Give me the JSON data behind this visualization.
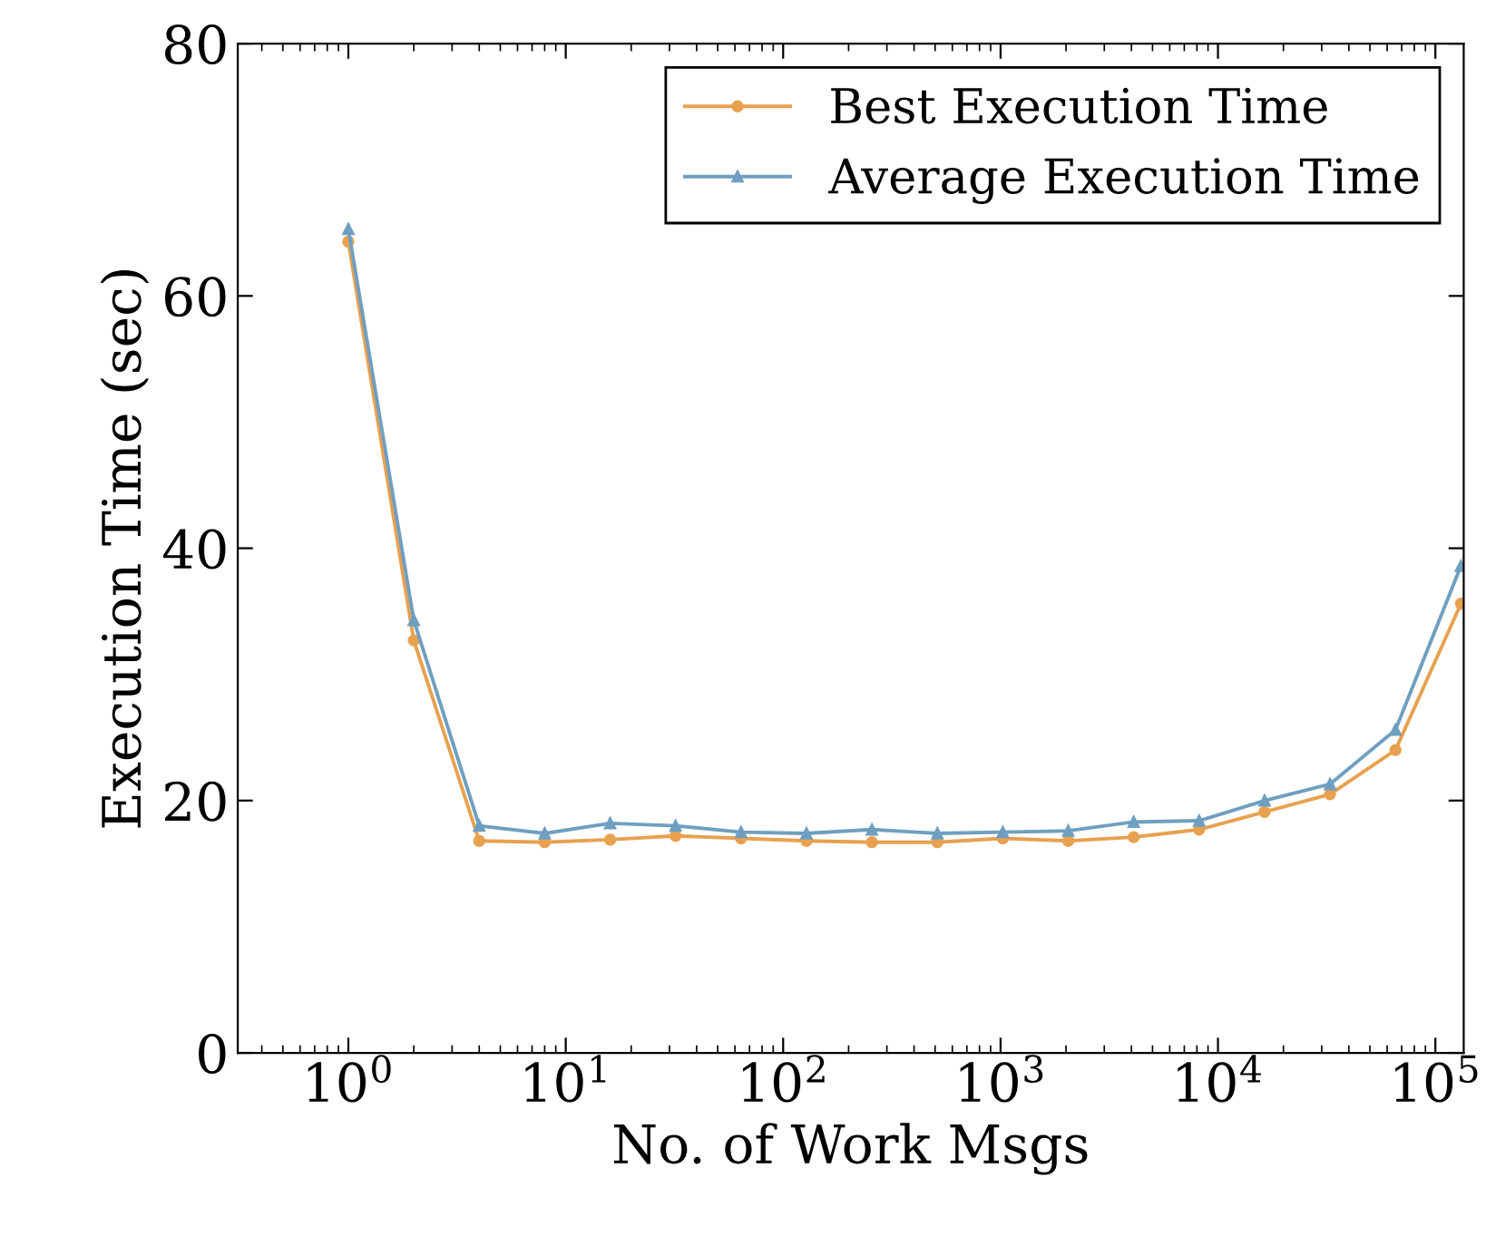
{
  "chart_data": {
    "type": "line",
    "xlabel": "No. of Work Msgs",
    "ylabel": "Execution Time (sec)",
    "log": "x",
    "xlim": [
      0.31,
      135000
    ],
    "ylim": [
      0,
      80
    ],
    "xticks": [
      {
        "value": 1,
        "label": "10$^{0}$"
      },
      {
        "value": 10,
        "label": "10$^{1}$"
      },
      {
        "value": 100,
        "label": "10$^{2}$"
      },
      {
        "value": 1000,
        "label": "10$^{3}$"
      },
      {
        "value": 10000,
        "label": "10$^{4}$"
      },
      {
        "value": 100000,
        "label": "10$^{5}$"
      }
    ],
    "yticks": [
      0,
      20,
      40,
      60,
      80
    ],
    "x": [
      1,
      2,
      4,
      8,
      16,
      32,
      64,
      128,
      256,
      512,
      1024,
      2048,
      4096,
      8192,
      16384,
      32768,
      65536,
      131072
    ],
    "series": [
      {
        "name": "Best Execution Time",
        "color": "#e8a14f",
        "marker": "circle",
        "values": [
          64.3,
          32.7,
          16.8,
          16.7,
          16.9,
          17.2,
          17.0,
          16.8,
          16.7,
          16.7,
          17.0,
          16.8,
          17.1,
          17.7,
          19.1,
          20.5,
          24.0,
          35.6
        ]
      },
      {
        "name": "Average Execution Time",
        "color": "#6f9fc0",
        "marker": "triangle",
        "values": [
          65.3,
          34.3,
          18.0,
          17.4,
          18.2,
          18.0,
          17.5,
          17.4,
          17.7,
          17.4,
          17.5,
          17.6,
          18.3,
          18.4,
          20.0,
          21.3,
          25.6,
          38.6
        ]
      }
    ],
    "legend": "top right",
    "grid": false,
    "line_style": "solid"
  }
}
